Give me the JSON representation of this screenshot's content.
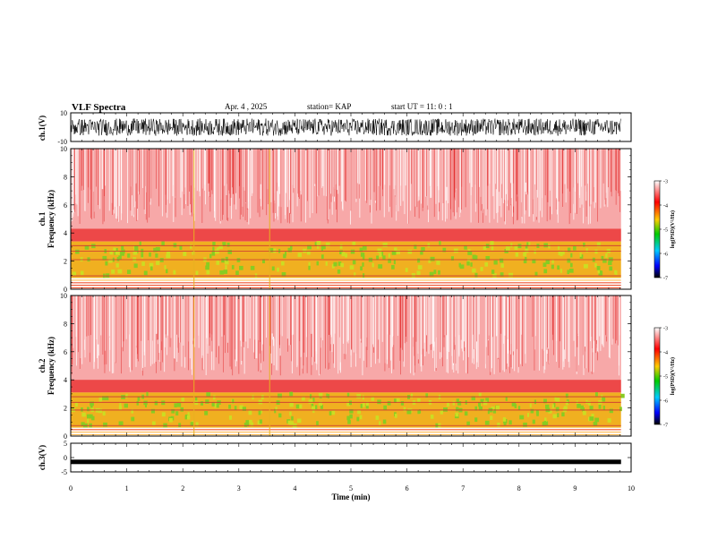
{
  "header": {
    "title": "VLF Spectra",
    "date": "Apr. 4 , 2025",
    "station": "station= KAP",
    "start": "start UT = 11: 0 : 1"
  },
  "colors": {
    "spectrogram_background": "#ffffff",
    "high_power": "#ee2222",
    "mid_power": "#f5a623",
    "green_band": "#66cc33",
    "colorbar": [
      "#ff0000",
      "#ffff00",
      "#00cc00",
      "#00ffff",
      "#0000ff",
      "#000000"
    ]
  },
  "chart_data": [
    {
      "type": "line",
      "panel": "ch1-waveform",
      "ylabel": "ch.1(V)",
      "ylim": [
        -10,
        10
      ],
      "yticks": [
        "10",
        "-10"
      ],
      "description_of_signal": "noisy broadband waveform spanning roughly ±6 V"
    },
    {
      "type": "heatmap",
      "panel": "ch1-spectrogram",
      "ylabel": "ch.1\nFrequency (kHz)",
      "ylabel_lines": [
        "ch.1",
        "Frequency (kHz)"
      ],
      "ylim": [
        0,
        10
      ],
      "yticks": [
        "0",
        "2",
        "4",
        "6",
        "8",
        "10"
      ],
      "bands": [
        {
          "from_khz": 0,
          "to_khz": 0.8,
          "level": "orange-lines"
        },
        {
          "from_khz": 0.8,
          "to_khz": 3.4,
          "level": "yellow-green"
        },
        {
          "from_khz": 3.4,
          "to_khz": 10,
          "level": "red-speckle"
        }
      ],
      "colorbar": {
        "label": "log(PSD)(V²/Hz)",
        "ticks": [
          "-3",
          "-4",
          "-5",
          "-6",
          "-7"
        ],
        "range": [
          -7,
          -3
        ]
      }
    },
    {
      "type": "heatmap",
      "panel": "ch2-spectrogram",
      "ylabel_lines": [
        "ch.2",
        "Frequency (kHz)"
      ],
      "ylim": [
        0,
        10
      ],
      "yticks": [
        "0",
        "2",
        "4",
        "6",
        "8",
        "10"
      ],
      "bands": [
        {
          "from_khz": 0,
          "to_khz": 0.6,
          "level": "orange-lines"
        },
        {
          "from_khz": 0.6,
          "to_khz": 3.1,
          "level": "yellow-green"
        },
        {
          "from_khz": 3.1,
          "to_khz": 10,
          "level": "red-speckle"
        }
      ],
      "colorbar": {
        "label": "log(PSD)(V²/Hz)",
        "ticks": [
          "-3",
          "-4",
          "-5",
          "-6",
          "-7"
        ],
        "range": [
          -7,
          -3
        ]
      }
    },
    {
      "type": "line",
      "panel": "ch3-waveform",
      "ylabel": "ch.3(V)",
      "ylim": [
        -5,
        5
      ],
      "yticks": [
        "5",
        "0",
        "-5"
      ],
      "level_v": -1.5
    }
  ],
  "xaxis": {
    "label": "Time (min)",
    "xlim": [
      0,
      10
    ],
    "ticks": [
      "0",
      "1",
      "2",
      "3",
      "4",
      "5",
      "6",
      "7",
      "8",
      "9",
      "10"
    ]
  }
}
